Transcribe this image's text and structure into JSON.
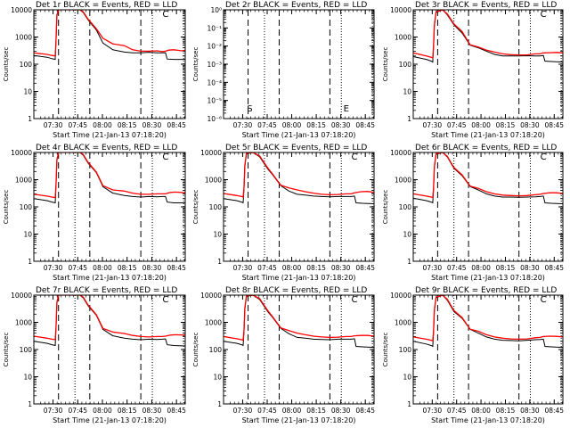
{
  "figure": {
    "xlabel": "Start Time (21-Jan-13 07:18:20)",
    "ylabel": "Counts/sec",
    "x_ticks": [
      "07:30",
      "07:45",
      "08:00",
      "08:15",
      "08:30",
      "08:45"
    ],
    "y_ticks_std": [
      "1",
      "10",
      "100",
      "1000",
      "10000"
    ],
    "y_ticks_det2": [
      "10⁻⁶",
      "10⁻⁵",
      "10⁻⁴",
      "10⁻³",
      "10⁻²",
      "10⁻¹",
      "10⁰"
    ],
    "colors": {
      "events": "#000000",
      "lld": "#ff0000"
    }
  },
  "chart_data": [
    {
      "type": "line",
      "title": "Det 1r BLACK = Events, RED = LLD",
      "xlabel": "Start Time (21-Jan-13 07:18:20)",
      "ylabel": "Counts/sec",
      "x_unit": "minutes after 07:18:20",
      "xlim": [
        0,
        92
      ],
      "ylim": [
        1,
        10000
      ],
      "y_scale": "log",
      "annotations": [
        {
          "text": "C",
          "x": 80
        }
      ],
      "series": [
        {
          "name": "Events",
          "x": [
            0,
            8,
            11,
            13,
            13.5,
            14,
            15,
            23,
            28,
            30,
            33,
            38,
            42,
            48,
            55,
            60,
            65,
            70,
            75,
            78,
            80,
            81,
            85,
            92
          ],
          "values": [
            210,
            180,
            160,
            150,
            700,
            6000,
            10000,
            10000,
            10000,
            8000,
            4200,
            1800,
            600,
            340,
            280,
            260,
            260,
            275,
            260,
            260,
            265,
            155,
            150,
            150
          ]
        },
        {
          "name": "LLD",
          "x": [
            0,
            8,
            11,
            13,
            13.5,
            14,
            15,
            23,
            28,
            30,
            33,
            38,
            42,
            48,
            55,
            60,
            65,
            70,
            75,
            78,
            80,
            82,
            85,
            90,
            92
          ],
          "values": [
            260,
            230,
            210,
            200,
            800,
            6500,
            10000,
            10000,
            10000,
            8500,
            4500,
            2000,
            900,
            560,
            480,
            340,
            300,
            300,
            310,
            290,
            300,
            330,
            340,
            310,
            330
          ]
        }
      ]
    },
    {
      "type": "line",
      "title": "Det 2r BLACK = Events, RED = LLD",
      "xlabel": "Start Time (21-Jan-13 07:18:20)",
      "ylabel": "Counts/sec",
      "x_unit": "minutes after 07:18:20",
      "xlim": [
        0,
        92
      ],
      "ylim": [
        1e-06,
        1
      ],
      "y_scale": "log",
      "annotations": [
        {
          "text": "S",
          "x": 16
        },
        {
          "text": "E",
          "x": 75
        }
      ],
      "series": []
    },
    {
      "type": "line",
      "title": "Det 3r BLACK = Events, RED = LLD",
      "xlabel": "Start Time (21-Jan-13 07:18:20)",
      "ylabel": "Counts/sec",
      "x_unit": "minutes after 07:18:20",
      "xlim": [
        0,
        92
      ],
      "ylim": [
        1,
        10000
      ],
      "y_scale": "log",
      "annotations": [
        {
          "text": "C",
          "x": 80
        }
      ],
      "series": [
        {
          "name": "Events",
          "x": [
            0,
            8,
            11,
            12,
            12.5,
            13,
            14,
            18,
            21,
            25,
            30,
            35,
            40,
            45,
            50,
            55,
            60,
            65,
            70,
            75,
            78,
            80,
            81,
            85,
            92
          ],
          "values": [
            190,
            150,
            130,
            120,
            400,
            2500,
            8000,
            10000,
            6500,
            2800,
            1400,
            500,
            400,
            300,
            230,
            200,
            200,
            200,
            205,
            200,
            200,
            210,
            130,
            125,
            120
          ]
        },
        {
          "name": "LLD",
          "x": [
            0,
            8,
            11,
            12,
            12.5,
            13,
            14,
            18,
            21,
            25,
            30,
            35,
            40,
            45,
            50,
            55,
            60,
            65,
            70,
            75,
            78,
            80,
            84,
            88,
            92
          ],
          "values": [
            260,
            200,
            180,
            170,
            500,
            2800,
            8500,
            10000,
            7000,
            3000,
            1600,
            520,
            430,
            330,
            280,
            240,
            225,
            220,
            220,
            240,
            240,
            260,
            265,
            270,
            260
          ]
        }
      ]
    },
    {
      "type": "line",
      "title": "Det 4r BLACK = Events, RED = LLD",
      "xlabel": "Start Time (21-Jan-13 07:18:20)",
      "ylabel": "Counts/sec",
      "x_unit": "minutes after 07:18:20",
      "xlim": [
        0,
        92
      ],
      "ylim": [
        1,
        10000
      ],
      "y_scale": "log",
      "annotations": [
        {
          "text": "C",
          "x": 80
        }
      ],
      "series": [
        {
          "name": "Events",
          "x": [
            0,
            8,
            11,
            13,
            13.5,
            14,
            15,
            23,
            28,
            30,
            33,
            38,
            42,
            48,
            55,
            60,
            65,
            70,
            75,
            78,
            80,
            81,
            85,
            92
          ],
          "values": [
            200,
            170,
            150,
            140,
            600,
            5000,
            10000,
            10000,
            10000,
            8000,
            4000,
            1800,
            550,
            320,
            260,
            240,
            230,
            240,
            235,
            240,
            240,
            150,
            140,
            140
          ]
        },
        {
          "name": "LLD",
          "x": [
            0,
            8,
            11,
            13,
            13.5,
            14,
            15,
            23,
            28,
            30,
            33,
            38,
            42,
            48,
            55,
            60,
            65,
            70,
            75,
            78,
            80,
            83,
            86,
            92
          ],
          "values": [
            290,
            250,
            230,
            220,
            700,
            5500,
            10000,
            10000,
            10000,
            8500,
            4300,
            1900,
            600,
            420,
            380,
            320,
            290,
            290,
            300,
            300,
            300,
            340,
            350,
            330
          ]
        }
      ]
    },
    {
      "type": "line",
      "title": "Det 5r BLACK = Events, RED = LLD",
      "xlabel": "Start Time (21-Jan-13 07:18:20)",
      "ylabel": "Counts/sec",
      "x_unit": "minutes after 07:18:20",
      "xlim": [
        0,
        92
      ],
      "ylim": [
        1,
        10000
      ],
      "y_scale": "log",
      "annotations": [
        {
          "text": "C",
          "x": 80
        }
      ],
      "series": [
        {
          "name": "Events",
          "x": [
            0,
            8,
            11,
            12,
            12.5,
            13,
            14,
            18,
            22,
            27,
            30,
            35,
            40,
            45,
            50,
            55,
            60,
            65,
            70,
            75,
            78,
            80,
            81,
            85,
            92
          ],
          "values": [
            200,
            170,
            150,
            140,
            450,
            3000,
            9000,
            10000,
            7000,
            2500,
            1500,
            600,
            380,
            290,
            270,
            250,
            240,
            235,
            240,
            240,
            240,
            250,
            140,
            135,
            130
          ]
        },
        {
          "name": "LLD",
          "x": [
            0,
            8,
            11,
            12,
            12.5,
            13,
            14,
            18,
            22,
            27,
            30,
            35,
            40,
            45,
            50,
            55,
            60,
            65,
            70,
            75,
            78,
            80,
            84,
            88,
            92
          ],
          "values": [
            310,
            260,
            240,
            230,
            550,
            3300,
            9500,
            10000,
            7500,
            2700,
            1600,
            620,
            500,
            420,
            360,
            320,
            290,
            280,
            285,
            300,
            300,
            330,
            360,
            370,
            340
          ]
        }
      ]
    },
    {
      "type": "line",
      "title": "Det 6r BLACK = Events, RED = LLD",
      "xlabel": "Start Time (21-Jan-13 07:18:20)",
      "ylabel": "Counts/sec",
      "x_unit": "minutes after 07:18:20",
      "xlim": [
        0,
        92
      ],
      "ylim": [
        1,
        10000
      ],
      "y_scale": "log",
      "annotations": [
        {
          "text": "C",
          "x": 80
        }
      ],
      "series": [
        {
          "name": "Events",
          "x": [
            0,
            8,
            11,
            12,
            12.5,
            13,
            14,
            18,
            21,
            25,
            30,
            35,
            40,
            45,
            50,
            55,
            60,
            65,
            70,
            75,
            78,
            80,
            81,
            85,
            92
          ],
          "values": [
            210,
            170,
            150,
            140,
            420,
            2800,
            8500,
            10000,
            6800,
            2600,
            1400,
            560,
            420,
            300,
            250,
            230,
            230,
            225,
            230,
            235,
            240,
            250,
            140,
            135,
            130
          ]
        },
        {
          "name": "LLD",
          "x": [
            0,
            8,
            11,
            12,
            12.5,
            13,
            14,
            18,
            21,
            25,
            30,
            35,
            40,
            45,
            50,
            55,
            60,
            65,
            70,
            75,
            78,
            80,
            84,
            88,
            92
          ],
          "values": [
            300,
            250,
            230,
            220,
            520,
            3000,
            9000,
            10000,
            7200,
            2800,
            1500,
            580,
            480,
            360,
            300,
            270,
            260,
            255,
            260,
            280,
            290,
            310,
            330,
            330,
            310
          ]
        }
      ]
    },
    {
      "type": "line",
      "title": "Det 7r BLACK = Events, RED = LLD",
      "xlabel": "Start Time (21-Jan-13 07:18:20)",
      "ylabel": "Counts/sec",
      "x_unit": "minutes after 07:18:20",
      "xlim": [
        0,
        92
      ],
      "ylim": [
        1,
        10000
      ],
      "y_scale": "log",
      "annotations": [
        {
          "text": "C",
          "x": 80
        }
      ],
      "series": [
        {
          "name": "Events",
          "x": [
            0,
            8,
            11,
            13,
            13.5,
            14,
            15,
            23,
            28,
            30,
            33,
            38,
            42,
            48,
            55,
            60,
            65,
            70,
            75,
            78,
            80,
            81,
            85,
            92
          ],
          "values": [
            200,
            170,
            150,
            140,
            600,
            5000,
            10000,
            10000,
            10000,
            8000,
            4000,
            1800,
            550,
            320,
            260,
            240,
            230,
            240,
            235,
            240,
            245,
            150,
            140,
            135
          ]
        },
        {
          "name": "LLD",
          "x": [
            0,
            8,
            11,
            13,
            13.5,
            14,
            15,
            23,
            28,
            30,
            33,
            38,
            42,
            48,
            55,
            60,
            65,
            70,
            75,
            78,
            80,
            83,
            86,
            92
          ],
          "values": [
            310,
            260,
            240,
            230,
            700,
            5500,
            10000,
            10000,
            10000,
            8500,
            4300,
            1900,
            600,
            440,
            390,
            330,
            300,
            290,
            300,
            300,
            310,
            340,
            350,
            340
          ]
        }
      ]
    },
    {
      "type": "line",
      "title": "Det 8r BLACK = Events, RED = LLD",
      "xlabel": "Start Time (21-Jan-13 07:18:20)",
      "ylabel": "Counts/sec",
      "x_unit": "minutes after 07:18:20",
      "xlim": [
        0,
        92
      ],
      "ylim": [
        1,
        10000
      ],
      "y_scale": "log",
      "annotations": [
        {
          "text": "C",
          "x": 80
        }
      ],
      "series": [
        {
          "name": "Events",
          "x": [
            0,
            8,
            11,
            12,
            12.5,
            13,
            14,
            18,
            22,
            27,
            30,
            35,
            40,
            45,
            50,
            55,
            60,
            65,
            70,
            75,
            78,
            80,
            81,
            85,
            92
          ],
          "values": [
            200,
            170,
            150,
            140,
            450,
            3000,
            9000,
            10000,
            7000,
            2500,
            1500,
            600,
            380,
            280,
            260,
            240,
            235,
            230,
            240,
            240,
            240,
            250,
            130,
            125,
            120
          ]
        },
        {
          "name": "LLD",
          "x": [
            0,
            8,
            11,
            12,
            12.5,
            13,
            14,
            18,
            22,
            27,
            30,
            35,
            40,
            45,
            50,
            55,
            60,
            65,
            70,
            75,
            78,
            80,
            84,
            88,
            92
          ],
          "values": [
            300,
            250,
            230,
            220,
            550,
            3300,
            9500,
            10000,
            7500,
            2700,
            1600,
            620,
            500,
            400,
            350,
            310,
            290,
            280,
            285,
            300,
            300,
            320,
            330,
            330,
            310
          ]
        }
      ]
    },
    {
      "type": "line",
      "title": "Det 9r BLACK = Events, RED = LLD",
      "xlabel": "Start Time (21-Jan-13 07:18:20)",
      "ylabel": "Counts/sec",
      "x_unit": "minutes after 07:18:20",
      "xlim": [
        0,
        92
      ],
      "ylim": [
        1,
        10000
      ],
      "y_scale": "log",
      "annotations": [
        {
          "text": "C",
          "x": 80
        }
      ],
      "series": [
        {
          "name": "Events",
          "x": [
            0,
            8,
            11,
            12,
            12.5,
            13,
            14,
            18,
            21,
            25,
            30,
            35,
            40,
            45,
            50,
            55,
            60,
            65,
            70,
            75,
            78,
            80,
            81,
            85,
            92
          ],
          "values": [
            200,
            160,
            140,
            130,
            400,
            2600,
            8000,
            10000,
            6500,
            2500,
            1400,
            550,
            400,
            290,
            240,
            220,
            215,
            210,
            220,
            230,
            235,
            240,
            130,
            125,
            120
          ]
        },
        {
          "name": "LLD",
          "x": [
            0,
            8,
            11,
            12,
            12.5,
            13,
            14,
            18,
            21,
            25,
            30,
            35,
            40,
            45,
            50,
            55,
            60,
            65,
            70,
            75,
            78,
            80,
            84,
            88,
            92
          ],
          "values": [
            290,
            240,
            220,
            210,
            500,
            2900,
            8500,
            10000,
            7000,
            2700,
            1500,
            560,
            470,
            350,
            290,
            260,
            245,
            240,
            245,
            270,
            280,
            300,
            310,
            305,
            290
          ]
        }
      ]
    }
  ]
}
